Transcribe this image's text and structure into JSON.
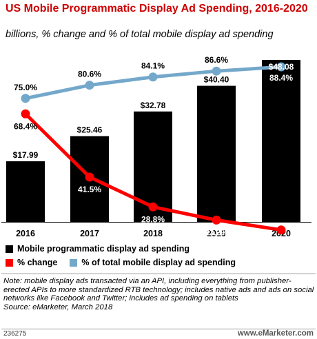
{
  "title": "US Mobile Programmatic Display Ad Spending, 2016-2020",
  "subtitle": "billions, % change and % of total mobile display ad spending",
  "colors": {
    "title": "#cc0000",
    "bar": "#000000",
    "change_line": "#ff0000",
    "share_line": "#74a8cb"
  },
  "chart_data": {
    "type": "bar",
    "categories": [
      "2016",
      "2017",
      "2018",
      "2019",
      "2020"
    ],
    "series": [
      {
        "name": "Mobile programmatic display ad spending",
        "type": "bar",
        "values": [
          17.99,
          25.46,
          32.78,
          40.4,
          48.08
        ],
        "labels": [
          "$17.99",
          "$25.46",
          "$32.78",
          "$40.40",
          "$48.08"
        ]
      },
      {
        "name": "% change",
        "type": "line",
        "values": [
          68.4,
          41.5,
          28.8,
          23.2,
          19.0
        ],
        "labels": [
          "68.4%",
          "41.5%",
          "28.8%",
          "23.2%",
          "19.0%"
        ]
      },
      {
        "name": "% of total mobile display ad spending",
        "type": "line",
        "values": [
          75.0,
          80.6,
          84.1,
          86.6,
          88.4
        ],
        "labels": [
          "75.0%",
          "80.6%",
          "84.1%",
          "86.6%",
          "88.4%"
        ]
      }
    ],
    "grid": false,
    "legend": "bottom"
  },
  "legend": {
    "bar_label": "Mobile programmatic display ad spending",
    "change_label": "% change",
    "share_label": "% of total mobile display ad spending"
  },
  "note": "Note: mobile display ads transacted via an API, including everything from publisher-erected APIs to more standardized RTB technology; includes native ads and ads on social networks like Facebook and Twitter; includes ad spending on tablets",
  "source": "Source: eMarketer, March 2018",
  "footer": {
    "chart_id": "236275",
    "brand_prefix": "www.",
    "brand_name": "eMarketer",
    "brand_suffix": ".com"
  }
}
